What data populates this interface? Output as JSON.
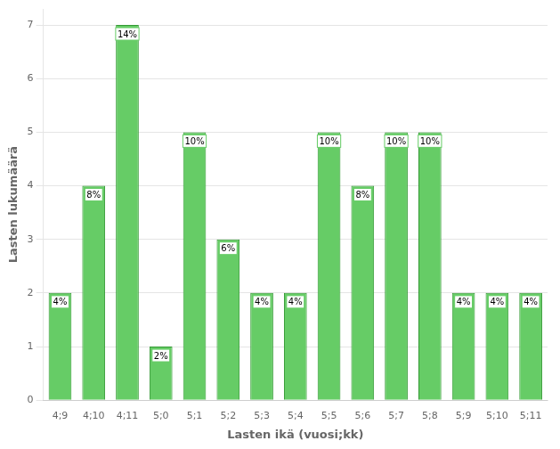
{
  "chart_data": {
    "type": "bar",
    "categories": [
      "4;9",
      "4;10",
      "4;11",
      "5;0",
      "5;1",
      "5;2",
      "5;3",
      "5;4",
      "5;5",
      "5;6",
      "5;7",
      "5;8",
      "5;9",
      "5;10",
      "5;11"
    ],
    "values": [
      2,
      4,
      7,
      1,
      5,
      3,
      2,
      2,
      5,
      4,
      5,
      5,
      2,
      2,
      2
    ],
    "value_labels": [
      "4%",
      "8%",
      "14%",
      "2%",
      "10%",
      "6%",
      "4%",
      "4%",
      "10%",
      "8%",
      "10%",
      "10%",
      "4%",
      "4%",
      "4%"
    ],
    "data_labels": true,
    "color": "#66cc66",
    "xlabel": "Lasten ikä (vuosi;kk)",
    "ylabel": "Lasten lukumäärä",
    "ylim": [
      0,
      7.3
    ],
    "yticks": [
      0,
      1,
      2,
      3,
      4,
      5,
      6,
      7
    ],
    "grid": true
  }
}
